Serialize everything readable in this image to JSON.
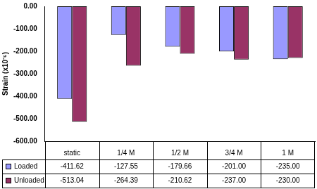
{
  "chart_data": {
    "type": "bar",
    "y_label": "Strain (x10⁻⁶)",
    "categories": [
      "static",
      "1/4 M",
      "1/2 M",
      "3/4 M",
      "1 M"
    ],
    "series": [
      {
        "name": "Loaded",
        "color": "#9999ff",
        "values": [
          -411.62,
          -127.55,
          -179.66,
          -201.0,
          -235.0
        ],
        "value_labels": [
          "-411.62",
          "-127.55",
          "-179.66",
          "-201.00",
          "-235.00"
        ]
      },
      {
        "name": "Unloaded",
        "color": "#993366",
        "values": [
          -513.04,
          -264.39,
          -210.62,
          -237.0,
          -230.0
        ],
        "value_labels": [
          "-513.04",
          "-264.39",
          "-210.62",
          "-237.00",
          "-230.00"
        ]
      }
    ],
    "ylim": [
      -600,
      0
    ],
    "yticks": [
      {
        "value": -600,
        "label": "-600.00"
      },
      {
        "value": -500,
        "label": "-500.00"
      },
      {
        "value": -400,
        "label": "-400.00"
      },
      {
        "value": -300,
        "label": "-300.00"
      },
      {
        "value": -200,
        "label": "-200.00"
      },
      {
        "value": -100,
        "label": "-100.00"
      },
      {
        "value": 0,
        "label": "0.00"
      }
    ],
    "grid": false
  }
}
